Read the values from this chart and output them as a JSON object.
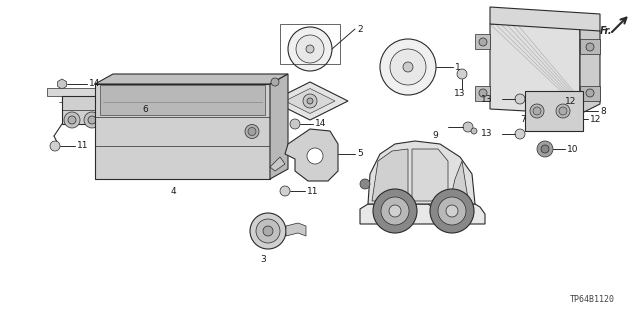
{
  "bg_color": "#ffffff",
  "diagram_code": "TP64B1120",
  "line_color": "#2a2a2a",
  "label_fontsize": 6.5,
  "label_color": "#1a1a1a"
}
